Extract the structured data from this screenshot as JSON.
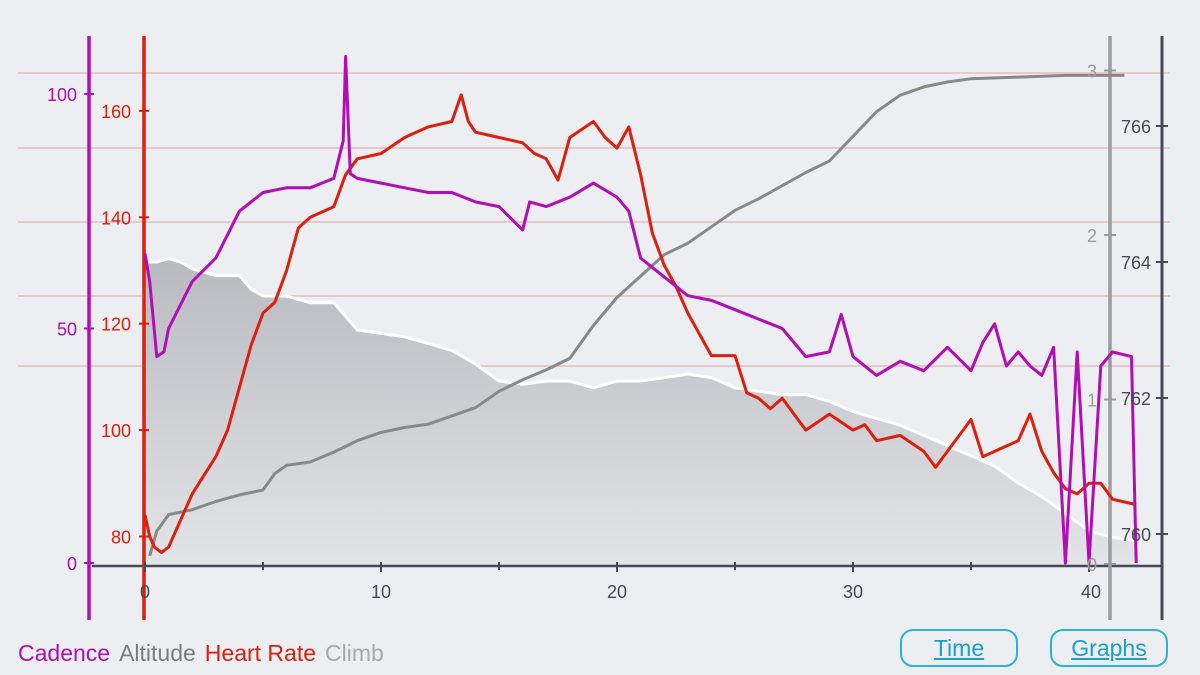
{
  "colors": {
    "cadence": "#b10eb5",
    "heart_rate": "#dc1f0e",
    "altitude": "#7d7d7d",
    "climb": "#a9a9ad",
    "background": "#eceef1",
    "button": "#1a9fd0"
  },
  "legend": {
    "cadence": "Cadence",
    "altitude": "Altitude",
    "heart_rate": "Heart Rate",
    "climb": "Climb"
  },
  "buttons": {
    "time": "Time",
    "graphs": "Graphs"
  },
  "chart_data": {
    "type": "line",
    "x_range": [
      0,
      42
    ],
    "x_ticks": [
      0,
      10,
      20,
      30,
      40
    ],
    "grid": true,
    "legend_position": "bottom-left",
    "axes": {
      "cadence": {
        "ticks": [
          0,
          50,
          100
        ],
        "range": [
          0,
          115
        ]
      },
      "heart_rate": {
        "ticks": [
          80,
          100,
          120,
          140,
          160
        ],
        "range": [
          75,
          170
        ]
      },
      "climb": {
        "ticks": [
          0,
          1,
          2,
          3
        ],
        "range": [
          0,
          3.1
        ]
      },
      "altitude": {
        "ticks": [
          760,
          762,
          764,
          766
        ],
        "range": [
          759.5,
          767
        ]
      }
    },
    "series": [
      {
        "name": "Altitude",
        "color": "#ffffff",
        "fill": "#c9cacf",
        "axis": "altitude",
        "points": [
          [
            0,
            764.0
          ],
          [
            0.5,
            764.0
          ],
          [
            1.0,
            764.05
          ],
          [
            1.5,
            764.0
          ],
          [
            2.0,
            763.9
          ],
          [
            3.0,
            763.8
          ],
          [
            4.0,
            763.8
          ],
          [
            4.5,
            763.6
          ],
          [
            5.0,
            763.5
          ],
          [
            6.0,
            763.5
          ],
          [
            7.0,
            763.4
          ],
          [
            8.0,
            763.4
          ],
          [
            9.0,
            763.0
          ],
          [
            10.0,
            762.95
          ],
          [
            11.0,
            762.9
          ],
          [
            12.0,
            762.8
          ],
          [
            13.0,
            762.7
          ],
          [
            14.0,
            762.5
          ],
          [
            15.0,
            762.25
          ],
          [
            16.0,
            762.2
          ],
          [
            17.0,
            762.25
          ],
          [
            18.0,
            762.25
          ],
          [
            19.0,
            762.15
          ],
          [
            20.0,
            762.25
          ],
          [
            21.0,
            762.25
          ],
          [
            22.0,
            762.3
          ],
          [
            23.0,
            762.35
          ],
          [
            24.0,
            762.3
          ],
          [
            25.0,
            762.15
          ],
          [
            26.0,
            762.1
          ],
          [
            27.0,
            762.05
          ],
          [
            28.0,
            762.05
          ],
          [
            29.0,
            761.95
          ],
          [
            30.0,
            761.8
          ],
          [
            31.0,
            761.7
          ],
          [
            32.0,
            761.6
          ],
          [
            33.0,
            761.45
          ],
          [
            34.0,
            761.3
          ],
          [
            35.0,
            761.15
          ],
          [
            36.0,
            761.0
          ],
          [
            37.0,
            760.75
          ],
          [
            38.0,
            760.55
          ],
          [
            39.0,
            760.3
          ],
          [
            40.0,
            760.05
          ],
          [
            41.0,
            759.95
          ],
          [
            42.0,
            759.9
          ]
        ]
      },
      {
        "name": "Climb",
        "color": "#898989",
        "axis": "climb",
        "points": [
          [
            0.2,
            0.05
          ],
          [
            0.5,
            0.2
          ],
          [
            1.0,
            0.3
          ],
          [
            2.0,
            0.33
          ],
          [
            3.0,
            0.38
          ],
          [
            4.0,
            0.42
          ],
          [
            5.0,
            0.45
          ],
          [
            5.5,
            0.55
          ],
          [
            6.0,
            0.6
          ],
          [
            7.0,
            0.62
          ],
          [
            8.0,
            0.68
          ],
          [
            9.0,
            0.75
          ],
          [
            10.0,
            0.8
          ],
          [
            11.0,
            0.83
          ],
          [
            12.0,
            0.85
          ],
          [
            13.0,
            0.9
          ],
          [
            14.0,
            0.95
          ],
          [
            15.0,
            1.05
          ],
          [
            16.0,
            1.12
          ],
          [
            17.0,
            1.18
          ],
          [
            18.0,
            1.25
          ],
          [
            19.0,
            1.45
          ],
          [
            20.0,
            1.62
          ],
          [
            21.0,
            1.75
          ],
          [
            22.0,
            1.88
          ],
          [
            23.0,
            1.95
          ],
          [
            24.0,
            2.05
          ],
          [
            25.0,
            2.15
          ],
          [
            26.0,
            2.22
          ],
          [
            27.0,
            2.3
          ],
          [
            28.0,
            2.38
          ],
          [
            29.0,
            2.45
          ],
          [
            30.0,
            2.6
          ],
          [
            31.0,
            2.75
          ],
          [
            32.0,
            2.85
          ],
          [
            33.0,
            2.9
          ],
          [
            34.0,
            2.93
          ],
          [
            35.0,
            2.95
          ],
          [
            37.0,
            2.96
          ],
          [
            39.0,
            2.97
          ],
          [
            40.0,
            2.97
          ],
          [
            41.0,
            2.97
          ],
          [
            41.5,
            2.97
          ]
        ]
      },
      {
        "name": "Heart Rate",
        "color": "#dc1f0e",
        "axis": "heart_rate",
        "points": [
          [
            0,
            84
          ],
          [
            0.2,
            80
          ],
          [
            0.4,
            78
          ],
          [
            0.7,
            77
          ],
          [
            1.0,
            78
          ],
          [
            1.5,
            83
          ],
          [
            2.0,
            88
          ],
          [
            3.0,
            95
          ],
          [
            3.5,
            100
          ],
          [
            4.0,
            108
          ],
          [
            4.5,
            116
          ],
          [
            5.0,
            122
          ],
          [
            5.5,
            124
          ],
          [
            6.0,
            130
          ],
          [
            6.5,
            138
          ],
          [
            7.0,
            140
          ],
          [
            8.0,
            142
          ],
          [
            8.5,
            148
          ],
          [
            9.0,
            151
          ],
          [
            10.0,
            152
          ],
          [
            11.0,
            155
          ],
          [
            12.0,
            157
          ],
          [
            13.0,
            158
          ],
          [
            13.4,
            163
          ],
          [
            13.7,
            158
          ],
          [
            14.0,
            156
          ],
          [
            15.0,
            155
          ],
          [
            16.0,
            154
          ],
          [
            16.5,
            152
          ],
          [
            17.0,
            151
          ],
          [
            17.5,
            147
          ],
          [
            18.0,
            155
          ],
          [
            19.0,
            158
          ],
          [
            19.5,
            155
          ],
          [
            20.0,
            153
          ],
          [
            20.5,
            157
          ],
          [
            21.0,
            148
          ],
          [
            21.5,
            137
          ],
          [
            22.0,
            131
          ],
          [
            22.5,
            127
          ],
          [
            23.0,
            122
          ],
          [
            24.0,
            114
          ],
          [
            25.0,
            114
          ],
          [
            25.5,
            107
          ],
          [
            26.0,
            106
          ],
          [
            26.5,
            104
          ],
          [
            27.0,
            106
          ],
          [
            28.0,
            100
          ],
          [
            29.0,
            103
          ],
          [
            30.0,
            100
          ],
          [
            30.5,
            101
          ],
          [
            31.0,
            98
          ],
          [
            32.0,
            99
          ],
          [
            33.0,
            96
          ],
          [
            33.5,
            93
          ],
          [
            34.0,
            96
          ],
          [
            35.0,
            102
          ],
          [
            35.5,
            95
          ],
          [
            36.0,
            96
          ],
          [
            37.0,
            98
          ],
          [
            37.5,
            103
          ],
          [
            38.0,
            96
          ],
          [
            38.5,
            92
          ],
          [
            39.0,
            89
          ],
          [
            39.5,
            88
          ],
          [
            40.0,
            90
          ],
          [
            40.5,
            90
          ],
          [
            41.0,
            87
          ],
          [
            42.0,
            86
          ]
        ]
      },
      {
        "name": "Cadence",
        "color": "#b10eb5",
        "axis": "cadence",
        "points": [
          [
            0,
            66
          ],
          [
            0.2,
            60
          ],
          [
            0.5,
            44
          ],
          [
            0.8,
            45
          ],
          [
            1.0,
            50
          ],
          [
            2.0,
            60
          ],
          [
            3.0,
            65
          ],
          [
            4.0,
            75
          ],
          [
            5.0,
            79
          ],
          [
            6.0,
            80
          ],
          [
            7.0,
            80
          ],
          [
            8.0,
            82
          ],
          [
            8.4,
            90
          ],
          [
            8.5,
            108
          ],
          [
            8.7,
            83
          ],
          [
            9.0,
            82
          ],
          [
            10.0,
            81
          ],
          [
            11.0,
            80
          ],
          [
            12.0,
            79
          ],
          [
            13.0,
            79
          ],
          [
            14.0,
            77
          ],
          [
            15.0,
            76
          ],
          [
            16.0,
            71
          ],
          [
            16.3,
            77
          ],
          [
            17.0,
            76
          ],
          [
            18.0,
            78
          ],
          [
            19.0,
            81
          ],
          [
            20.0,
            78
          ],
          [
            20.5,
            75
          ],
          [
            21.0,
            65
          ],
          [
            22.0,
            61
          ],
          [
            23.0,
            57
          ],
          [
            24.0,
            56
          ],
          [
            25.0,
            54
          ],
          [
            26.0,
            52
          ],
          [
            27.0,
            50
          ],
          [
            28.0,
            44
          ],
          [
            29.0,
            45
          ],
          [
            29.5,
            53
          ],
          [
            30.0,
            44
          ],
          [
            31.0,
            40
          ],
          [
            32.0,
            43
          ],
          [
            33.0,
            41
          ],
          [
            34.0,
            46
          ],
          [
            35.0,
            41
          ],
          [
            35.5,
            47
          ],
          [
            36.0,
            51
          ],
          [
            36.5,
            42
          ],
          [
            37.0,
            45
          ],
          [
            37.5,
            42
          ],
          [
            38.0,
            40
          ],
          [
            38.5,
            46
          ],
          [
            39.0,
            0
          ],
          [
            39.5,
            45
          ],
          [
            40.0,
            0
          ],
          [
            40.5,
            42
          ],
          [
            41.0,
            45
          ],
          [
            41.8,
            44
          ],
          [
            42.0,
            0
          ]
        ]
      }
    ]
  }
}
